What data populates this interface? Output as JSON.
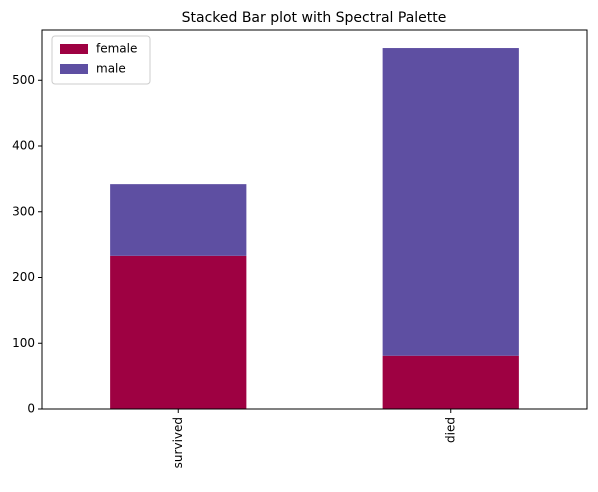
{
  "chart_data": {
    "type": "bar",
    "stacked": true,
    "title": "Stacked Bar plot with Spectral Palette",
    "categories": [
      "survived",
      "died"
    ],
    "series": [
      {
        "name": "female",
        "color": "#9e0142",
        "values": [
          233,
          81
        ]
      },
      {
        "name": "male",
        "color": "#5e4fa2",
        "values": [
          109,
          468
        ]
      }
    ],
    "ylim": [
      0,
      576.45
    ],
    "yticks": [
      0,
      100,
      200,
      300,
      400,
      500
    ],
    "grid": false,
    "legend": "upper left"
  }
}
